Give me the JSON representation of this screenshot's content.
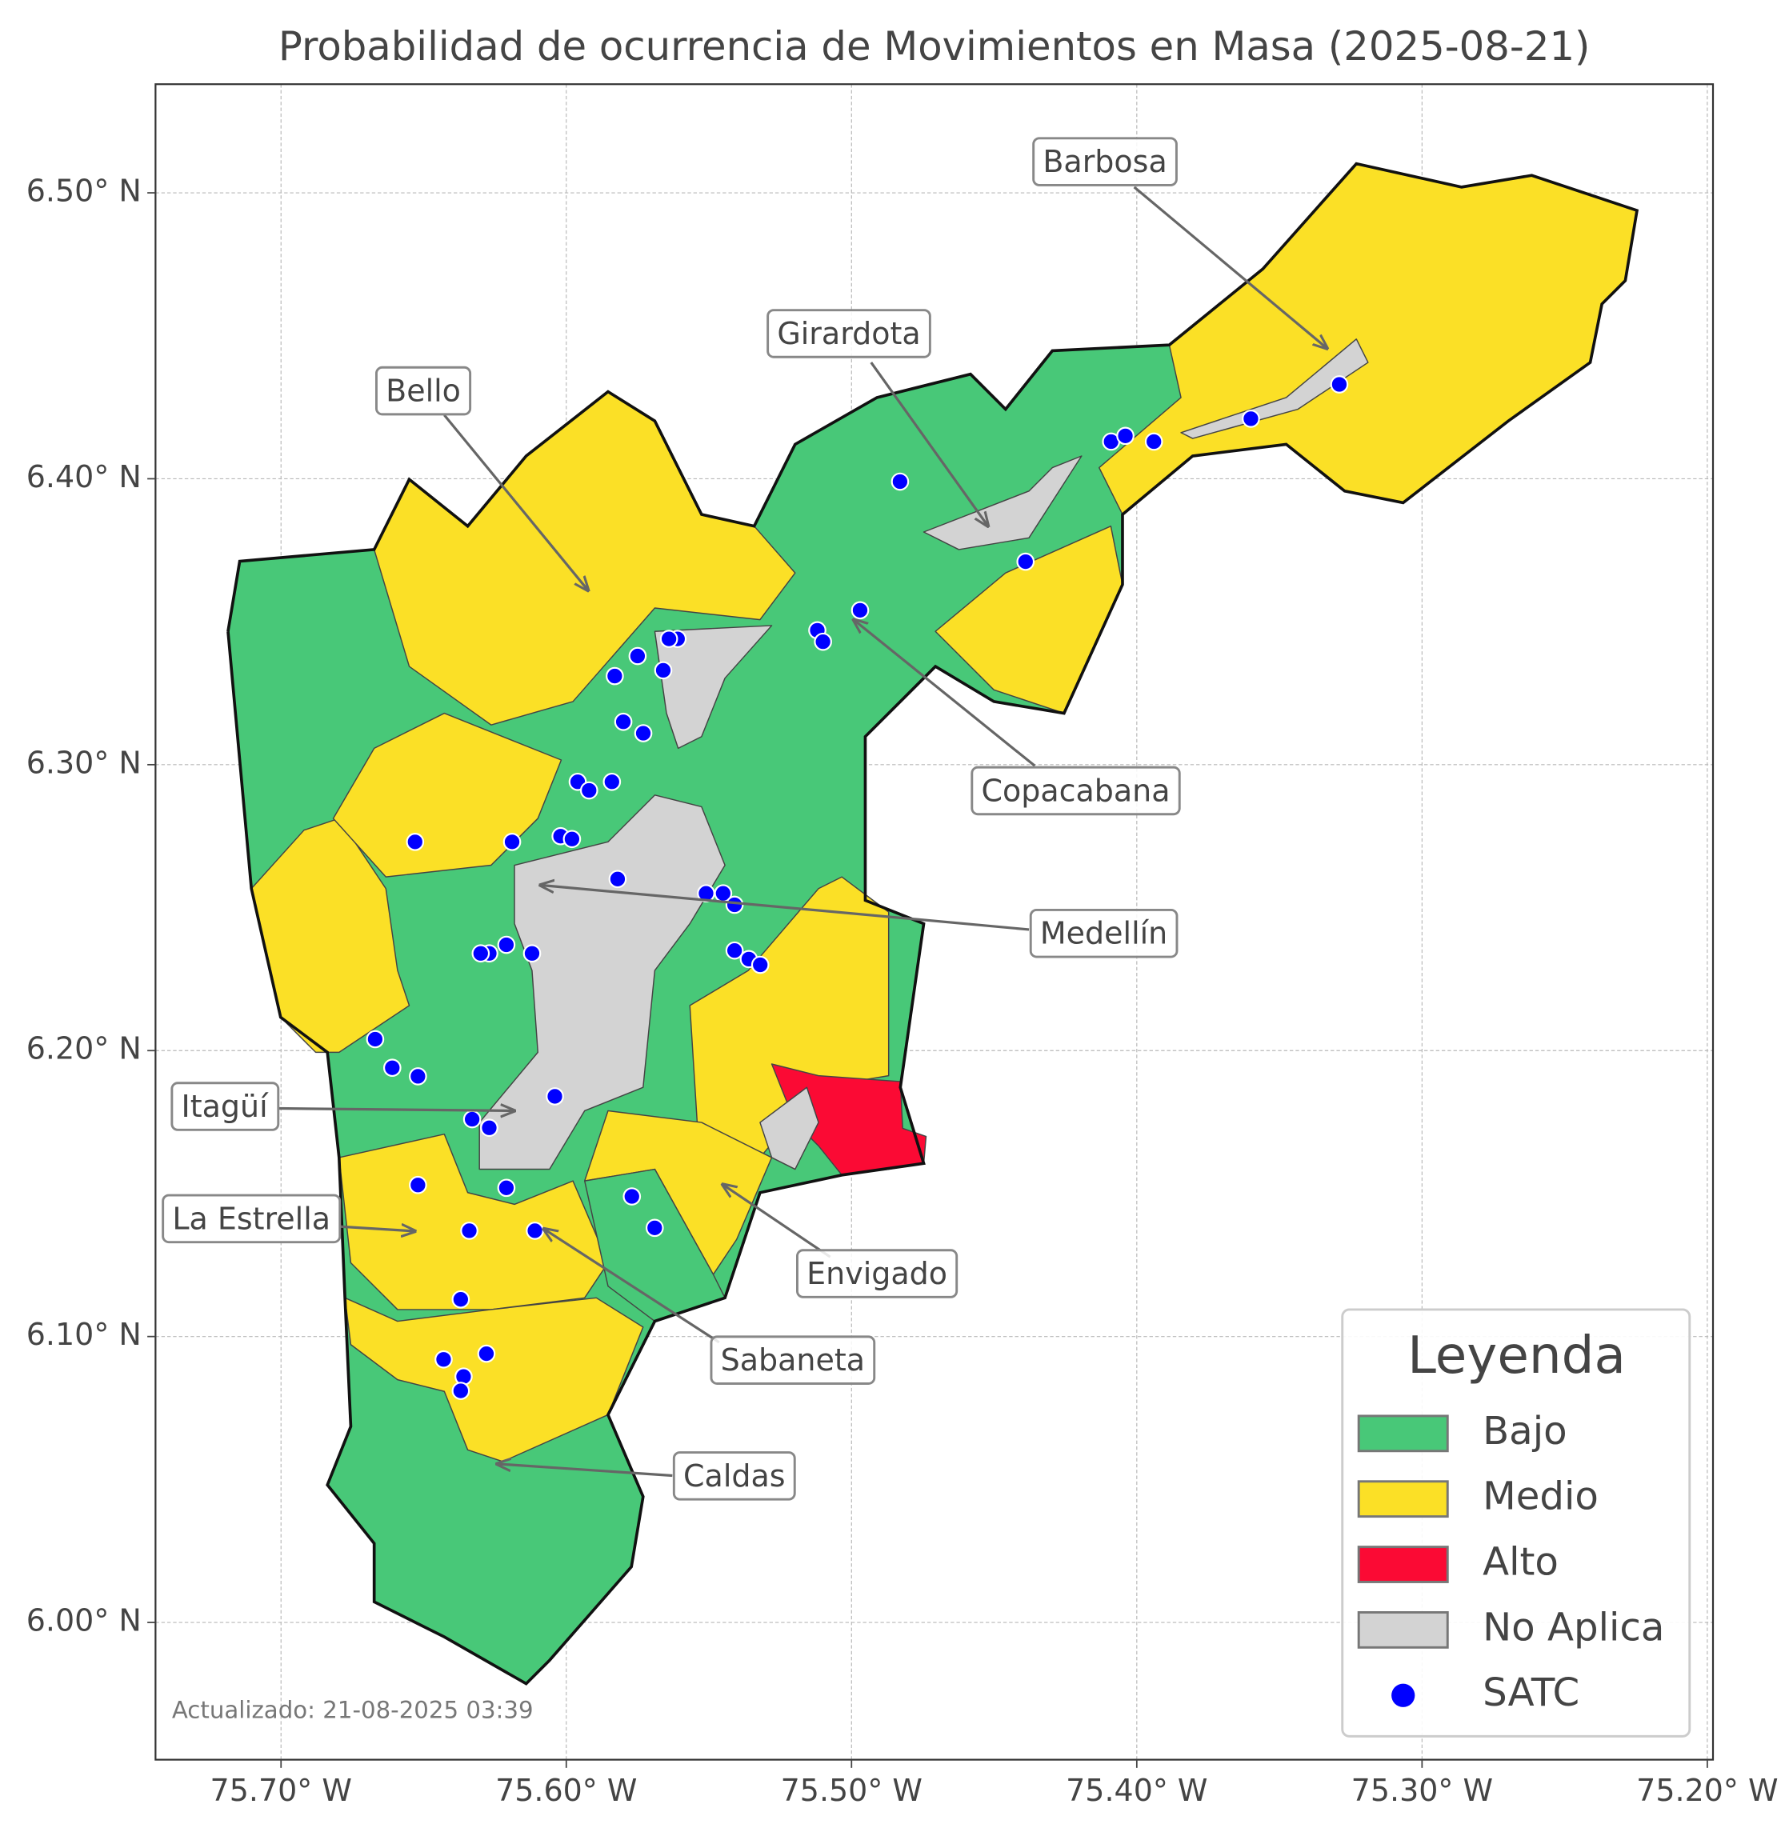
{
  "chart_data": {
    "type": "map",
    "title": "Probabilidad de ocurrencia de Movimientos en Masa (2025-08-21)",
    "xlim": [
      -75.744,
      -75.198
    ],
    "ylim": [
      5.952,
      6.538
    ],
    "xticks": [
      {
        "value": -75.7,
        "label": "75.70° W"
      },
      {
        "value": -75.6,
        "label": "75.60° W"
      },
      {
        "value": -75.5,
        "label": "75.50° W"
      },
      {
        "value": -75.4,
        "label": "75.40° W"
      },
      {
        "value": -75.3,
        "label": "75.30° W"
      },
      {
        "value": -75.2,
        "label": "75.20° W"
      }
    ],
    "yticks": [
      {
        "value": 6.0,
        "label": "6.00° N"
      },
      {
        "value": 6.1,
        "label": "6.10° N"
      },
      {
        "value": 6.2,
        "label": "6.20° N"
      },
      {
        "value": 6.3,
        "label": "6.30° N"
      },
      {
        "value": 6.4,
        "label": "6.40° N"
      },
      {
        "value": 6.5,
        "label": "6.50° N"
      }
    ],
    "grid": true,
    "legend": {
      "title": "Leyenda",
      "position": "lower right",
      "items": [
        {
          "name": "Bajo",
          "color": "#48c878"
        },
        {
          "name": "Medio",
          "color": "#fbe026"
        },
        {
          "name": "Alto",
          "color": "#fb0a34"
        },
        {
          "name": "No Aplica",
          "color": "#d3d3d3"
        }
      ]
    },
    "series": [
      {
        "name": "SATC",
        "color": "#0000ff",
        "x": [
          -75.483,
          -75.409,
          -75.404,
          -75.394,
          -75.36,
          -75.329,
          -75.439,
          -75.497,
          -75.512,
          -75.51,
          -75.561,
          -75.564,
          -75.575,
          -75.583,
          -75.566,
          -75.58,
          -75.573,
          -75.596,
          -75.592,
          -75.584,
          -75.619,
          -75.602,
          -75.598,
          -75.653,
          -75.582,
          -75.551,
          -75.545,
          -75.541,
          -75.541,
          -75.536,
          -75.532,
          -75.621,
          -75.627,
          -75.63,
          -75.612,
          -75.667,
          -75.661,
          -75.652,
          -75.604,
          -75.633,
          -75.627,
          -75.652,
          -75.621,
          -75.577,
          -75.569,
          -75.634,
          -75.611,
          -75.637,
          -75.643,
          -75.628,
          -75.636,
          -75.637
        ],
        "y": [
          6.399,
          6.413,
          6.415,
          6.413,
          6.421,
          6.433,
          6.371,
          6.354,
          6.347,
          6.343,
          6.344,
          6.344,
          6.338,
          6.331,
          6.333,
          6.315,
          6.311,
          6.294,
          6.291,
          6.294,
          6.273,
          6.275,
          6.274,
          6.273,
          6.26,
          6.255,
          6.255,
          6.251,
          6.235,
          6.232,
          6.23,
          6.237,
          6.234,
          6.234,
          6.234,
          6.204,
          6.194,
          6.191,
          6.184,
          6.176,
          6.173,
          6.153,
          6.152,
          6.149,
          6.138,
          6.137,
          6.137,
          6.113,
          6.092,
          6.094,
          6.086,
          6.081
        ]
      }
    ],
    "annotations": [
      "Barbosa",
      "Girardota",
      "Bello",
      "Copacabana",
      "Medellín",
      "Itagüí",
      "La Estrella",
      "Envigado",
      "Sabaneta",
      "Caldas"
    ],
    "note": "Actualizado: 21-08-2025 03:39"
  }
}
